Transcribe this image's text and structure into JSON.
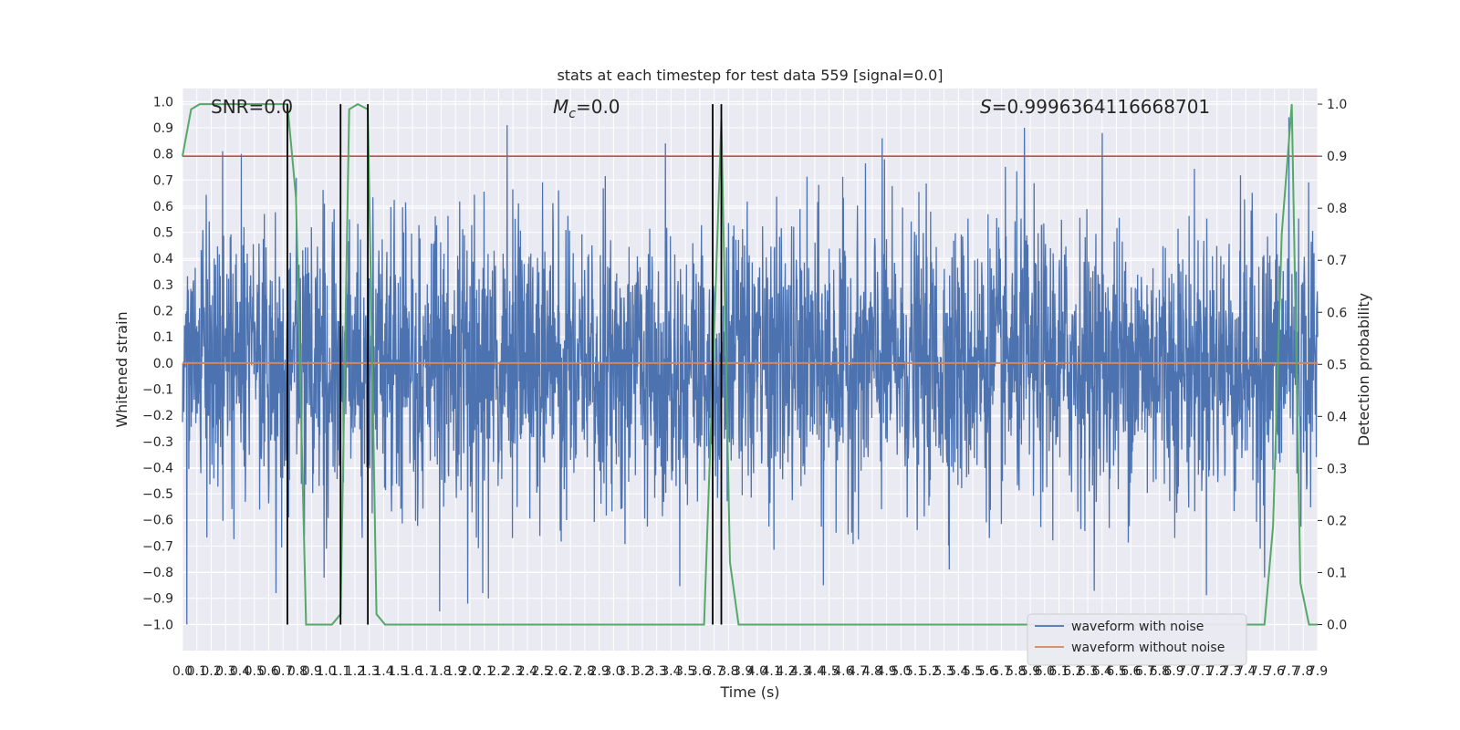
{
  "chart_data": {
    "type": "line",
    "title": "stats at each timestep for test data 559 [signal=0.0]",
    "xlabel": "Time (s)",
    "ylabel": "Whitened strain",
    "y2label": "Detection probability",
    "xlim": [
      0.0,
      7.9
    ],
    "ylim": [
      -1.1,
      1.05
    ],
    "y2lim": [
      -0.05,
      1.03
    ],
    "x_tick_step": 0.1,
    "y_tick_step": 0.1,
    "y2_tick_step": 0.1,
    "grid": true,
    "legend_position": "lower-right",
    "annotations": {
      "snr": "SNR=0.0",
      "mc": "M_c=0.0",
      "mc_base": "M",
      "mc_sub": "c",
      "mc_value": "=0.0",
      "s_base": "S",
      "s_value": "=0.9996364116668701"
    },
    "threshold": {
      "value": 0.9,
      "axis": "y2",
      "color": "#c44e52"
    },
    "vertical_lines": [
      0.73,
      1.1,
      1.29,
      3.69,
      3.75
    ],
    "series": [
      {
        "name": "waveform with noise",
        "axis": "y",
        "color": "#4c72b0",
        "noise_envelope": {
          "typical_amplitude": 0.35,
          "max_peak": 0.94,
          "min_peak": -1.0
        },
        "peaks": [
          {
            "x": 0.03,
            "y": -1.0
          },
          {
            "x": 0.28,
            "y": 0.81
          },
          {
            "x": 0.41,
            "y": 0.8
          },
          {
            "x": 0.65,
            "y": -0.88
          },
          {
            "x": 1.1,
            "y": 0.82
          },
          {
            "x": 1.29,
            "y": 0.65
          },
          {
            "x": 1.79,
            "y": -0.95
          },
          {
            "x": 2.09,
            "y": -0.88
          },
          {
            "x": 2.13,
            "y": -0.9
          },
          {
            "x": 2.26,
            "y": 0.91
          },
          {
            "x": 3.36,
            "y": 0.84
          },
          {
            "x": 4.46,
            "y": -0.85
          },
          {
            "x": 4.87,
            "y": 0.86
          },
          {
            "x": 5.86,
            "y": 0.9
          },
          {
            "x": 6.4,
            "y": 0.88
          },
          {
            "x": 7.53,
            "y": -0.82
          },
          {
            "x": 7.7,
            "y": 0.94
          }
        ]
      },
      {
        "name": "waveform without noise",
        "axis": "y",
        "color": "#dd8452",
        "x": [
          0.0,
          7.9
        ],
        "y": [
          0.0,
          0.0
        ]
      },
      {
        "name": "",
        "axis": "y2",
        "color": "#55a868",
        "x": [
          0.0,
          0.06,
          0.12,
          0.18,
          0.25,
          0.31,
          0.37,
          0.43,
          0.49,
          0.55,
          0.61,
          0.67,
          0.73,
          0.79,
          0.86,
          0.92,
          0.98,
          1.04,
          1.1,
          1.16,
          1.22,
          1.29,
          1.35,
          1.41,
          1.47,
          1.53,
          1.59,
          1.65,
          2.2,
          2.75,
          3.0,
          3.3,
          3.57,
          3.63,
          3.69,
          3.75,
          3.81,
          3.87,
          3.93,
          4.5,
          5.5,
          6.5,
          7.1,
          7.35,
          7.41,
          7.47,
          7.53,
          7.59,
          7.65,
          7.72,
          7.78,
          7.84,
          7.9
        ],
        "y": [
          0.9,
          0.99,
          1.0,
          1.0,
          1.0,
          1.0,
          1.0,
          1.0,
          1.0,
          1.0,
          1.0,
          1.0,
          1.0,
          0.82,
          0.0,
          0.0,
          0.0,
          0.0,
          0.02,
          0.99,
          1.0,
          0.99,
          0.02,
          0.0,
          0.0,
          0.0,
          0.0,
          0.0,
          0.0,
          0.0,
          0.0,
          0.0,
          0.0,
          0.0,
          0.48,
          0.97,
          0.12,
          0.0,
          0.0,
          0.0,
          0.0,
          0.0,
          0.0,
          0.0,
          0.0,
          0.0,
          0.0,
          0.19,
          0.75,
          1.0,
          0.08,
          0.0,
          0.0
        ]
      }
    ]
  },
  "legend": {
    "items": [
      {
        "label": "waveform with noise",
        "color": "#4c72b0"
      },
      {
        "label": "waveform without noise",
        "color": "#dd8452"
      }
    ]
  }
}
